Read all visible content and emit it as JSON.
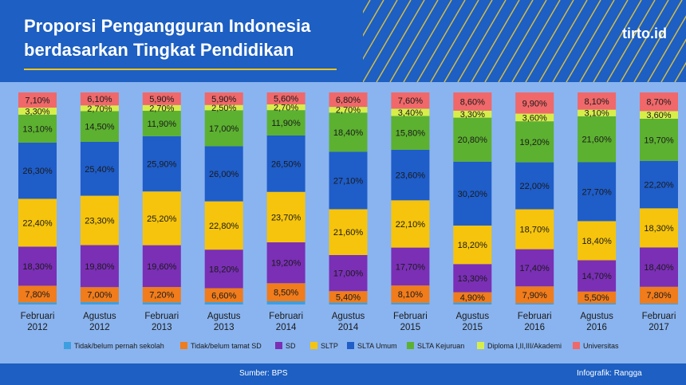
{
  "header": {
    "title_line1": "Proporsi Pengangguran Indonesia",
    "title_line2": "berdasarkan Tingkat Pendidikan",
    "logo": "tirto.id"
  },
  "footer": {
    "source": "Sumber: BPS",
    "credit": "Infografik: Rangga"
  },
  "colors": {
    "header_bg": "#1d5fc2",
    "page_bg": "#8ab4ef",
    "accent_yellow": "#f5c518"
  },
  "chart_data": {
    "type": "bar",
    "stacked": true,
    "percent_stacked": true,
    "title": "Proporsi Pengangguran Indonesia berdasarkan Tingkat Pendidikan",
    "categories": [
      [
        "Februari",
        "2012"
      ],
      [
        "Agustus",
        "2012"
      ],
      [
        "Februari",
        "2013"
      ],
      [
        "Agustus",
        "2013"
      ],
      [
        "Februari",
        "2014"
      ],
      [
        "Agustus",
        "2014"
      ],
      [
        "Februari",
        "2015"
      ],
      [
        "Agustus",
        "2015"
      ],
      [
        "Februari",
        "2016"
      ],
      [
        "Agustus",
        "2016"
      ],
      [
        "Februari",
        "2017"
      ]
    ],
    "series": [
      {
        "name": "Tidak/belum pernah sekolah",
        "color": "#3d9fe0",
        "values": [
          1.0,
          1.2,
          1.0,
          1.1,
          1.5,
          0.9,
          0.8,
          0.9,
          0.6,
          0.6,
          0.5
        ],
        "labels": [
          "",
          "",
          "",
          "",
          "",
          "",
          "",
          "",
          "",
          "",
          ""
        ]
      },
      {
        "name": "Tidak/belum tamat SD",
        "color": "#f07c1c",
        "values": [
          7.8,
          7.0,
          7.2,
          6.6,
          8.5,
          5.4,
          8.1,
          4.9,
          7.9,
          5.5,
          7.8
        ],
        "labels": [
          "7,80%",
          "7,00%",
          "7,20%",
          "6,60%",
          "8,50%",
          "5,40%",
          "8,10%",
          "4,90%",
          "7,90%",
          "5,50%",
          "7,80%"
        ]
      },
      {
        "name": "SD",
        "color": "#7a2fb5",
        "values": [
          18.3,
          19.8,
          19.6,
          18.2,
          19.2,
          17.0,
          17.7,
          13.3,
          17.4,
          14.7,
          18.4
        ],
        "labels": [
          "18,30%",
          "19,80%",
          "19,60%",
          "18,20%",
          "19,20%",
          "17,00%",
          "17,70%",
          "13,30%",
          "17,40%",
          "14,70%",
          "18,40%"
        ]
      },
      {
        "name": "SLTP",
        "color": "#f6c40c",
        "values": [
          22.4,
          23.3,
          25.2,
          22.8,
          23.7,
          21.6,
          22.1,
          18.2,
          18.7,
          18.4,
          18.3
        ],
        "labels": [
          "22,40%",
          "23,30%",
          "25,20%",
          "22,80%",
          "23,70%",
          "21,60%",
          "22,10%",
          "18,20%",
          "18,70%",
          "18,40%",
          "18,30%"
        ]
      },
      {
        "name": "SLTA Umum",
        "color": "#1f5dc8",
        "values": [
          26.3,
          25.4,
          25.9,
          26.0,
          26.5,
          27.1,
          23.6,
          30.2,
          22.0,
          27.7,
          22.2
        ],
        "labels": [
          "26,30%",
          "25,40%",
          "25,90%",
          "26,00%",
          "26,50%",
          "27,10%",
          "23,60%",
          "30,20%",
          "22,00%",
          "27,70%",
          "22,20%"
        ]
      },
      {
        "name": "SLTA Kejuruan",
        "color": "#5cb130",
        "values": [
          13.1,
          14.5,
          11.9,
          17.0,
          11.9,
          18.4,
          15.8,
          20.8,
          19.2,
          21.6,
          19.7
        ],
        "labels": [
          "13,10%",
          "14,50%",
          "11,90%",
          "17,00%",
          "11,90%",
          "18,40%",
          "15,80%",
          "20,80%",
          "19,20%",
          "21,60%",
          "19,70%"
        ]
      },
      {
        "name": "Diploma I,II,III/Akademi",
        "color": "#d7ee4a",
        "values": [
          3.3,
          2.7,
          2.7,
          2.5,
          2.7,
          2.7,
          3.4,
          3.3,
          3.6,
          3.1,
          3.6
        ],
        "labels": [
          "3,30%",
          "2,70%",
          "2,70%",
          "2,50%",
          "2,70%",
          "2,70%",
          "3,40%",
          "3,30%",
          "3,60%",
          "3,10%",
          "3,60%"
        ]
      },
      {
        "name": "Universitas",
        "color": "#f0686a",
        "values": [
          7.1,
          6.1,
          5.9,
          5.9,
          5.6,
          6.8,
          7.6,
          8.6,
          9.9,
          8.1,
          8.7
        ],
        "labels": [
          "7,10%",
          "6,10%",
          "5,90%",
          "5,90%",
          "5,60%",
          "6,80%",
          "7,60%",
          "8,60%",
          "9,90%",
          "8,10%",
          "8,70%"
        ]
      }
    ],
    "ylim": [
      0,
      100
    ],
    "xlabel": "",
    "ylabel": "",
    "legend": "bottom"
  }
}
